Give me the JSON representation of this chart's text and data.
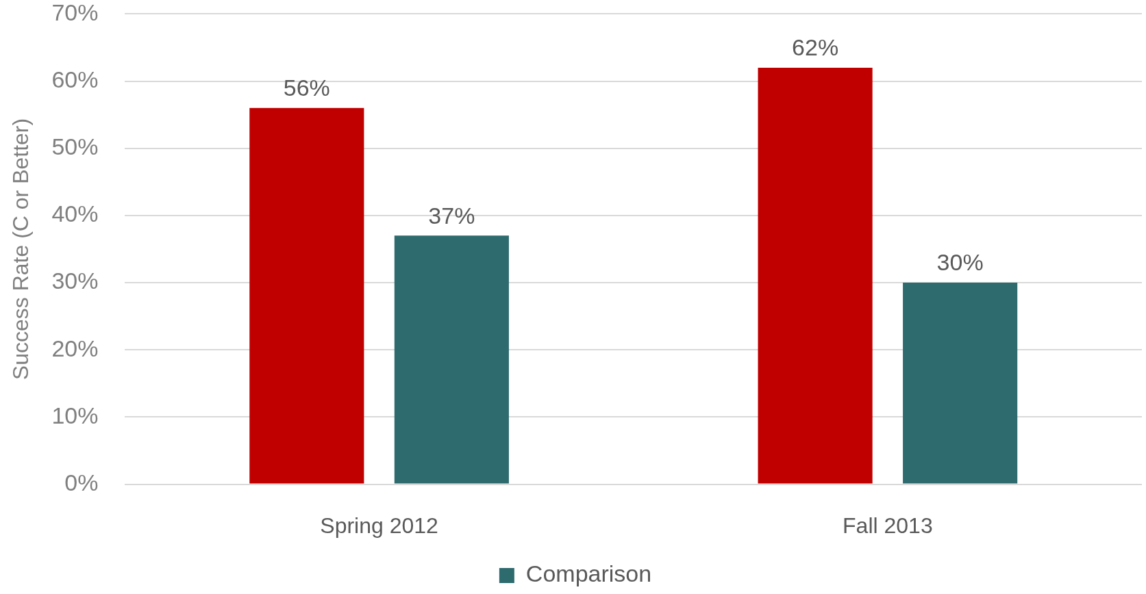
{
  "chart_data": {
    "type": "bar",
    "ylabel": "Success Rate (C or Better)",
    "categories": [
      "Spring 2012",
      "Fall 2013"
    ],
    "series": [
      {
        "color": "#c00000",
        "values": [
          56,
          62
        ],
        "value_labels": [
          "56%",
          "62%"
        ]
      },
      {
        "name": "Comparison",
        "color": "#2e6b6e",
        "values": [
          37,
          30
        ],
        "value_labels": [
          "37%",
          "30%"
        ]
      }
    ],
    "ylim": [
      0,
      70
    ],
    "yticks": [
      {
        "value": 0,
        "label": "0%"
      },
      {
        "value": 10,
        "label": "10%"
      },
      {
        "value": 20,
        "label": "20%"
      },
      {
        "value": 30,
        "label": "30%"
      },
      {
        "value": 40,
        "label": "40%"
      },
      {
        "value": 50,
        "label": "50%"
      },
      {
        "value": 60,
        "label": "60%"
      },
      {
        "value": 70,
        "label": "70%"
      }
    ],
    "grid": "y",
    "legend": "bottom"
  }
}
